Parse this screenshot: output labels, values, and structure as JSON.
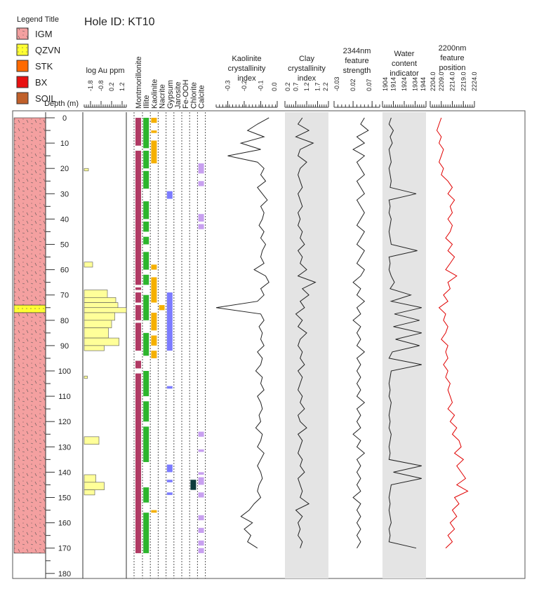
{
  "title": "Hole ID: KT10",
  "legend": {
    "title": "Legend Title",
    "items": [
      {
        "label": "IGM",
        "color": "#f4a0a0"
      },
      {
        "label": "QZVN",
        "color": "#ffff33"
      },
      {
        "label": "STK",
        "color": "#ff6a00"
      },
      {
        "label": "BX",
        "color": "#e81010"
      },
      {
        "label": "SOIL",
        "color": "#c0602a"
      }
    ]
  },
  "depth_label": "Depth (m)",
  "chart_data": {
    "type": "line",
    "depth_axis": {
      "label": "Depth (m)",
      "range": [
        0,
        180
      ],
      "ticks": [
        0,
        10,
        20,
        30,
        40,
        50,
        60,
        70,
        80,
        90,
        100,
        110,
        120,
        130,
        140,
        150,
        160,
        170,
        180
      ]
    },
    "lithology": [
      {
        "from": 0,
        "to": 74,
        "unit": "IGM"
      },
      {
        "from": 74,
        "to": 77,
        "unit": "QZVN"
      },
      {
        "from": 77,
        "to": 172,
        "unit": "IGM"
      }
    ],
    "au": {
      "label": "log Au ppm",
      "ticks": [
        "-1.8",
        "-0.8",
        "0.2",
        "1.2"
      ],
      "range": [
        -2.4,
        1.6
      ],
      "intervals": [
        [
          20,
          21,
          -2.0
        ],
        [
          57,
          59,
          -1.6
        ],
        [
          68,
          71,
          -0.2
        ],
        [
          71,
          73,
          0.6
        ],
        [
          73,
          75,
          0.8
        ],
        [
          75,
          77,
          1.6
        ],
        [
          77,
          80,
          0.5
        ],
        [
          80,
          83,
          0.2
        ],
        [
          83,
          87,
          -0.1
        ],
        [
          87,
          90,
          0.9
        ],
        [
          90,
          92,
          -0.5
        ],
        [
          102,
          103,
          -2.1
        ],
        [
          126,
          129,
          -1.0
        ],
        [
          141,
          144,
          -1.3
        ],
        [
          144,
          147,
          -0.5
        ],
        [
          147,
          149,
          -1.4
        ]
      ]
    },
    "minerals": {
      "columns": [
        "Montmorillonite",
        "Illite",
        "Kaolinite",
        "Nacrite",
        "Gypsum",
        "Jarosite",
        "Fe-OOH",
        "Chlorite",
        "Calcite"
      ],
      "colors": [
        "#b03a64",
        "#2db52d",
        "#f5b000",
        "#f5b000",
        "#7b7bff",
        "#888888",
        "#e08a20",
        "#0c3b3b",
        "#c8a0f0"
      ],
      "intervals": {
        "Montmorillonite": [
          [
            0,
            11
          ],
          [
            13,
            66
          ],
          [
            67,
            68
          ],
          [
            69,
            73
          ],
          [
            74,
            80
          ],
          [
            81,
            92
          ],
          [
            96,
            99
          ],
          [
            101,
            172
          ]
        ],
        "Illite": [
          [
            0,
            12
          ],
          [
            13,
            20
          ],
          [
            21,
            28
          ],
          [
            33,
            40
          ],
          [
            41,
            45
          ],
          [
            47,
            50
          ],
          [
            53,
            60
          ],
          [
            62,
            66
          ],
          [
            70,
            80
          ],
          [
            85,
            94
          ],
          [
            100,
            110
          ],
          [
            112,
            120
          ],
          [
            122,
            136
          ],
          [
            146,
            152
          ],
          [
            156,
            172
          ]
        ],
        "Kaolinite": [
          [
            0,
            2
          ],
          [
            5,
            6
          ],
          [
            9,
            18
          ],
          [
            58,
            60
          ],
          [
            63,
            73
          ],
          [
            77,
            84
          ],
          [
            86,
            90
          ],
          [
            92,
            95
          ],
          [
            155,
            156
          ]
        ],
        "Gypsum": [
          [
            29,
            32
          ],
          [
            69,
            92
          ],
          [
            106,
            107
          ],
          [
            137,
            140
          ],
          [
            143,
            144
          ],
          [
            148,
            149
          ]
        ],
        "Nacrite": [
          [
            74,
            76
          ]
        ],
        "Chlorite": [
          [
            143,
            147
          ]
        ],
        "Calcite": [
          [
            18,
            22
          ],
          [
            25,
            27
          ],
          [
            38,
            41
          ],
          [
            42,
            44
          ],
          [
            124,
            126
          ],
          [
            131,
            132
          ],
          [
            140,
            141
          ],
          [
            142,
            145
          ],
          [
            148,
            150
          ],
          [
            157,
            159
          ],
          [
            162,
            164
          ],
          [
            167,
            169
          ],
          [
            170,
            172
          ]
        ]
      }
    },
    "tracks": [
      {
        "label": "Kaolinite crystallinity index",
        "ticks": [
          "-0.3",
          "-0.2",
          "-0.1",
          "0.0"
        ],
        "range": [
          -0.37,
          0.0
        ],
        "shaded": false,
        "color": "#222222",
        "depth_step": 2.5,
        "values": [
          -0.05,
          -0.12,
          -0.18,
          -0.08,
          -0.22,
          -0.1,
          -0.3,
          -0.12,
          -0.08,
          -0.1,
          -0.07,
          -0.12,
          -0.09,
          -0.06,
          -0.1,
          -0.08,
          -0.09,
          -0.11,
          -0.08,
          -0.1,
          -0.07,
          -0.09,
          -0.1,
          -0.08,
          -0.14,
          -0.07,
          -0.05,
          -0.1,
          -0.08,
          -0.12,
          -0.37,
          -0.1,
          -0.08,
          -0.11,
          -0.09,
          -0.1,
          -0.08,
          -0.12,
          -0.09,
          -0.1,
          -0.13,
          -0.09,
          -0.1,
          -0.08,
          -0.12,
          -0.1,
          -0.09,
          -0.11,
          -0.1,
          -0.13,
          -0.09,
          -0.1,
          -0.12,
          -0.08,
          -0.1,
          -0.12,
          -0.1,
          -0.09,
          -0.11,
          -0.12,
          -0.1,
          -0.14,
          -0.17,
          -0.22,
          -0.15,
          -0.2,
          -0.16,
          -0.18,
          -0.12
        ]
      },
      {
        "label": "Clay crystallinity index",
        "ticks": [
          "0.2",
          "0.7",
          "1.2",
          "1.7",
          "2.2"
        ],
        "range": [
          0.2,
          2.2
        ],
        "shaded": true,
        "color": "#222222",
        "depth_step": 2.5,
        "values": [
          1.0,
          0.8,
          1.3,
          0.7,
          1.5,
          0.9,
          0.8,
          1.2,
          0.9,
          0.8,
          0.9,
          1.0,
          0.8,
          0.9,
          1.0,
          0.8,
          0.9,
          0.8,
          1.0,
          0.9,
          1.1,
          0.8,
          1.0,
          0.9,
          1.2,
          0.8,
          1.6,
          1.0,
          1.3,
          0.9,
          1.1,
          0.7,
          1.0,
          0.8,
          1.2,
          0.9,
          0.8,
          1.0,
          0.9,
          1.1,
          0.8,
          1.0,
          0.9,
          0.8,
          1.0,
          0.9,
          1.1,
          0.8,
          0.9,
          1.2,
          0.8,
          1.0,
          0.9,
          0.8,
          1.0,
          0.9,
          1.1,
          0.8,
          0.9,
          1.0,
          0.9,
          1.3,
          0.7,
          1.0,
          0.8,
          0.9,
          0.8,
          1.0,
          0.9
        ]
      },
      {
        "label": "2344nm feature strength",
        "ticks": [
          "-0.03",
          "0.02",
          "0.07"
        ],
        "range": [
          -0.03,
          0.09
        ],
        "shaded": false,
        "color": "#222222",
        "depth_step": 2.5,
        "values": [
          0.05,
          0.04,
          0.06,
          0.03,
          0.05,
          0.02,
          0.05,
          0.03,
          0.04,
          0.05,
          0.03,
          0.04,
          0.05,
          0.03,
          0.04,
          0.05,
          0.04,
          0.03,
          0.05,
          0.04,
          0.03,
          0.05,
          0.04,
          0.03,
          0.05,
          0.04,
          0.02,
          0.04,
          0.03,
          0.05,
          0.03,
          0.04,
          0.02,
          0.04,
          0.03,
          0.04,
          0.03,
          0.05,
          0.03,
          0.04,
          0.03,
          0.04,
          0.03,
          0.04,
          0.03,
          0.05,
          0.03,
          0.04,
          0.03,
          0.04,
          0.02,
          0.04,
          0.03,
          0.05,
          0.03,
          0.04,
          0.03,
          0.04,
          0.03,
          0.04,
          0.02,
          0.04,
          0.03,
          0.04,
          0.03,
          0.04,
          0.03,
          0.04,
          0.03
        ]
      },
      {
        "label": "Water content indicator",
        "ticks": [
          "1904",
          "1914",
          "1924",
          "1934",
          "1944"
        ],
        "range": [
          1904,
          1944
        ],
        "shaded": true,
        "color": "#222222",
        "depth_step": 2.5,
        "values": [
          1912,
          1910,
          1914,
          1911,
          1913,
          1910,
          1911,
          1912,
          1910,
          1911,
          1912,
          1911,
          1935,
          1910,
          1911,
          1910,
          1912,
          1911,
          1910,
          1911,
          1912,
          1936,
          1910,
          1911,
          1910,
          1912,
          1915,
          1911,
          1930,
          1912,
          1940,
          1915,
          1938,
          1914,
          1940,
          1916,
          1938,
          1913,
          1910,
          1940,
          1912,
          1911,
          1910,
          1911,
          1910,
          1912,
          1911,
          1910,
          1911,
          1910,
          1912,
          1911,
          1910,
          1911,
          1910,
          1940,
          1914,
          1940,
          1912,
          1911,
          1910,
          1911,
          1910,
          1911,
          1912,
          1910,
          1911,
          1910,
          1935
        ]
      },
      {
        "label": "2200nm feature position",
        "ticks": [
          "2204.0",
          "2209.0",
          "2214.0",
          "2219.0",
          "2224.0"
        ],
        "range": [
          2204,
          2224
        ],
        "shaded": false,
        "color": "#e00000",
        "depth_step": 2.5,
        "values": [
          2209,
          2208,
          2207,
          2209,
          2208,
          2210,
          2209,
          2208,
          2210,
          2209,
          2212,
          2214,
          2212,
          2215,
          2213,
          2214,
          2212,
          2214,
          2213,
          2211,
          2214,
          2212,
          2215,
          2213,
          2211,
          2216,
          2212,
          2213,
          2210,
          2212,
          2208,
          2211,
          2210,
          2212,
          2211,
          2209,
          2212,
          2211,
          2212,
          2210,
          2212,
          2211,
          2213,
          2212,
          2213,
          2214,
          2212,
          2215,
          2213,
          2216,
          2214,
          2217,
          2218,
          2215,
          2219,
          2216,
          2218,
          2220,
          2216,
          2221,
          2215,
          2217,
          2214,
          2216,
          2213,
          2215,
          2212,
          2214,
          2211
        ]
      }
    ]
  }
}
